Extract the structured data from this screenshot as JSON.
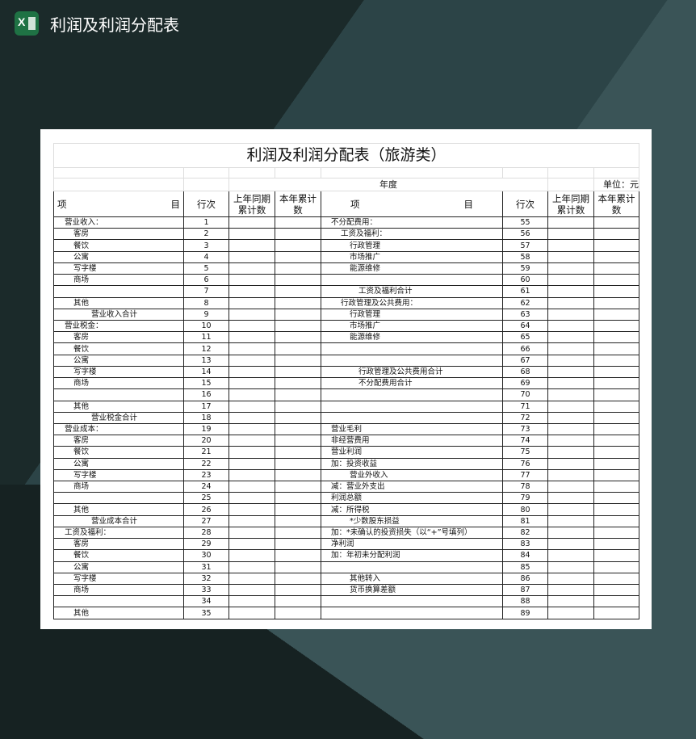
{
  "app": {
    "title": "利润及利润分配表",
    "icon": "excel-icon"
  },
  "sheet": {
    "title": "利润及利润分配表（旅游类）",
    "year_label": "年度",
    "unit_label": "单位：元",
    "headers": {
      "item_left": "项",
      "item_right": "目",
      "row_no": "行次",
      "prev": "上年同期累计数",
      "curr": "本年累计数"
    },
    "rows": [
      {
        "l": "营业收入：",
        "li": 0,
        "ln": "1",
        "r": "不分配费用：",
        "ri": 0,
        "rn": "55"
      },
      {
        "l": "客房",
        "li": 1,
        "ln": "2",
        "r": "工资及福利：",
        "ri": 1,
        "rn": "56"
      },
      {
        "l": "餐饮",
        "li": 1,
        "ln": "3",
        "r": "行政管理",
        "ri": 2,
        "rn": "57"
      },
      {
        "l": "公寓",
        "li": 1,
        "ln": "4",
        "r": "市场推广",
        "ri": 2,
        "rn": "58"
      },
      {
        "l": "写字楼",
        "li": 1,
        "ln": "5",
        "r": "能源维修",
        "ri": 2,
        "rn": "59"
      },
      {
        "l": "商场",
        "li": 1,
        "ln": "6",
        "r": "",
        "ri": 0,
        "rn": "60"
      },
      {
        "l": "",
        "li": 1,
        "ln": "7",
        "r": "工资及福利合计",
        "ri": 3,
        "rn": "61"
      },
      {
        "l": "其他",
        "li": 1,
        "ln": "8",
        "r": "行政管理及公共费用：",
        "ri": 1,
        "rn": "62"
      },
      {
        "l": "营业收入合计",
        "li": 2,
        "ln": "9",
        "r": "行政管理",
        "ri": 2,
        "rn": "63"
      },
      {
        "l": "营业税金：",
        "li": 0,
        "ln": "10",
        "r": "市场推广",
        "ri": 2,
        "rn": "64"
      },
      {
        "l": "客房",
        "li": 1,
        "ln": "11",
        "r": "能源维修",
        "ri": 2,
        "rn": "65"
      },
      {
        "l": "餐饮",
        "li": 1,
        "ln": "12",
        "r": "",
        "ri": 0,
        "rn": "66"
      },
      {
        "l": "公寓",
        "li": 1,
        "ln": "13",
        "r": "",
        "ri": 0,
        "rn": "67"
      },
      {
        "l": "写字楼",
        "li": 1,
        "ln": "14",
        "r": "行政管理及公共费用合计",
        "ri": 3,
        "rn": "68"
      },
      {
        "l": "商场",
        "li": 1,
        "ln": "15",
        "r": "不分配费用合计",
        "ri": 3,
        "rn": "69"
      },
      {
        "l": "",
        "li": 1,
        "ln": "16",
        "r": "",
        "ri": 0,
        "rn": "70"
      },
      {
        "l": "其他",
        "li": 1,
        "ln": "17",
        "r": "",
        "ri": 0,
        "rn": "71"
      },
      {
        "l": "营业税金合计",
        "li": 2,
        "ln": "18",
        "r": "",
        "ri": 0,
        "rn": "72"
      },
      {
        "l": "营业成本：",
        "li": 0,
        "ln": "19",
        "r": "营业毛利",
        "ri": 0,
        "rn": "73"
      },
      {
        "l": "客房",
        "li": 1,
        "ln": "20",
        "r": "非经营费用",
        "ri": 0,
        "rn": "74"
      },
      {
        "l": "餐饮",
        "li": 1,
        "ln": "21",
        "r": "营业利润",
        "ri": 0,
        "rn": "75"
      },
      {
        "l": "公寓",
        "li": 1,
        "ln": "22",
        "r": "加：投资收益",
        "ri": 0,
        "rn": "76"
      },
      {
        "l": "写字楼",
        "li": 1,
        "ln": "23",
        "r": "营业外收入",
        "ri": 2,
        "rn": "77"
      },
      {
        "l": "商场",
        "li": 1,
        "ln": "24",
        "r": "减：营业外支出",
        "ri": 0,
        "rn": "78"
      },
      {
        "l": "",
        "li": 1,
        "ln": "25",
        "r": "利润总额",
        "ri": 0,
        "rn": "79"
      },
      {
        "l": "其他",
        "li": 1,
        "ln": "26",
        "r": "减：所得税",
        "ri": 0,
        "rn": "80"
      },
      {
        "l": "营业成本合计",
        "li": 2,
        "ln": "27",
        "r": "*少数股东损益",
        "ri": 2,
        "rn": "81"
      },
      {
        "l": "工资及福利：",
        "li": 0,
        "ln": "28",
        "r": "加：*未确认的投资损失（以“+”号填列）",
        "ri": 0,
        "rn": "82"
      },
      {
        "l": "客房",
        "li": 1,
        "ln": "29",
        "r": "净利润",
        "ri": 0,
        "rn": "83"
      },
      {
        "l": "餐饮",
        "li": 1,
        "ln": "30",
        "r": "加：年初未分配利润",
        "ri": 0,
        "rn": "84"
      },
      {
        "l": "公寓",
        "li": 1,
        "ln": "31",
        "r": "",
        "ri": 0,
        "rn": "85"
      },
      {
        "l": "写字楼",
        "li": 1,
        "ln": "32",
        "r": "其他转入",
        "ri": 2,
        "rn": "86"
      },
      {
        "l": "商场",
        "li": 1,
        "ln": "33",
        "r": "货币换算差额",
        "ri": 2,
        "rn": "87"
      },
      {
        "l": "",
        "li": 1,
        "ln": "34",
        "r": "",
        "ri": 0,
        "rn": "88"
      },
      {
        "l": "其他",
        "li": 1,
        "ln": "35",
        "r": "",
        "ri": 0,
        "rn": "89"
      }
    ]
  }
}
